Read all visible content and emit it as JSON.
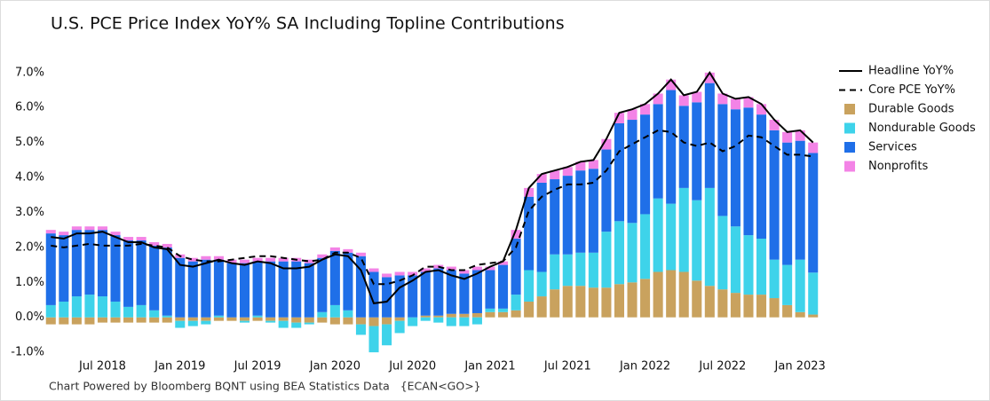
{
  "chart_data": {
    "type": "bar",
    "title": "U.S. PCE Price Index YoY% SA Including Topline Contributions",
    "source": "Chart Powered by Bloomberg BQNT using BEA Statistics Data   {ECAN<GO>}",
    "categories": [
      null,
      null,
      null,
      null,
      "Jul 2018",
      null,
      null,
      null,
      null,
      null,
      "Jan 2019",
      null,
      null,
      null,
      null,
      null,
      "Jul 2019",
      null,
      null,
      null,
      null,
      null,
      "Jan 2020",
      null,
      null,
      null,
      null,
      null,
      "Jul 2020",
      null,
      null,
      null,
      null,
      null,
      "Jan 2021",
      null,
      null,
      null,
      null,
      null,
      "Jul 2021",
      null,
      null,
      null,
      null,
      null,
      "Jan 2022",
      null,
      null,
      null,
      null,
      null,
      "Jul 2022",
      null,
      null,
      null,
      null,
      null,
      "Jan 2023",
      null
    ],
    "ylim": [
      -1.2,
      7.3
    ],
    "yticks": [
      {
        "value": -1,
        "label": "-1.0%"
      },
      {
        "value": 0,
        "label": "0.0%"
      },
      {
        "value": 1,
        "label": "1.0%"
      },
      {
        "value": 2,
        "label": "2.0%"
      },
      {
        "value": 3,
        "label": "3.0%"
      },
      {
        "value": 4,
        "label": "4.0%"
      },
      {
        "value": 5,
        "label": "5.0%"
      },
      {
        "value": 6,
        "label": "6.0%"
      },
      {
        "value": 7,
        "label": "7.0%"
      }
    ],
    "grid": false,
    "legend": "right",
    "series": [
      {
        "name": "Headline YoY%",
        "type": "line",
        "dash": false,
        "color": "#000000",
        "values": [
          2.3,
          2.25,
          2.4,
          2.4,
          2.45,
          2.3,
          2.15,
          2.15,
          2.0,
          1.95,
          1.5,
          1.45,
          1.55,
          1.65,
          1.55,
          1.5,
          1.6,
          1.55,
          1.4,
          1.4,
          1.45,
          1.65,
          1.8,
          1.75,
          1.35,
          0.4,
          0.45,
          0.85,
          1.05,
          1.3,
          1.35,
          1.2,
          1.1,
          1.25,
          1.45,
          1.6,
          2.5,
          3.7,
          4.1,
          4.2,
          4.3,
          4.45,
          4.5,
          5.1,
          5.85,
          5.95,
          6.1,
          6.4,
          6.8,
          6.35,
          6.45,
          7.0,
          6.4,
          6.25,
          6.3,
          6.1,
          5.65,
          5.3,
          5.35,
          5.0
        ]
      },
      {
        "name": "Core PCE YoY%",
        "type": "line",
        "dash": true,
        "color": "#000000",
        "values": [
          2.05,
          2.0,
          2.05,
          2.1,
          2.05,
          2.05,
          2.05,
          2.1,
          2.05,
          2.0,
          1.75,
          1.65,
          1.6,
          1.6,
          1.65,
          1.7,
          1.75,
          1.75,
          1.7,
          1.65,
          1.6,
          1.65,
          1.85,
          1.85,
          1.7,
          0.95,
          0.95,
          1.05,
          1.2,
          1.45,
          1.45,
          1.35,
          1.35,
          1.5,
          1.55,
          1.6,
          2.0,
          3.05,
          3.45,
          3.65,
          3.8,
          3.8,
          3.85,
          4.2,
          4.75,
          4.95,
          5.15,
          5.35,
          5.3,
          5.0,
          4.9,
          5.0,
          4.75,
          4.9,
          5.2,
          5.15,
          4.9,
          4.65,
          4.65,
          4.6
        ]
      },
      {
        "name": "Durable Goods",
        "type": "bar",
        "color": "#c9a25e",
        "values": [
          -0.2,
          -0.2,
          -0.2,
          -0.2,
          -0.15,
          -0.15,
          -0.15,
          -0.15,
          -0.15,
          -0.15,
          -0.1,
          -0.1,
          -0.1,
          -0.1,
          -0.1,
          -0.1,
          -0.1,
          -0.1,
          -0.1,
          -0.15,
          -0.15,
          -0.15,
          -0.2,
          -0.2,
          -0.2,
          -0.25,
          -0.2,
          -0.1,
          0.0,
          0.05,
          0.05,
          0.1,
          0.1,
          0.12,
          0.15,
          0.15,
          0.2,
          0.45,
          0.6,
          0.8,
          0.9,
          0.9,
          0.85,
          0.85,
          0.95,
          1.0,
          1.1,
          1.3,
          1.35,
          1.3,
          1.05,
          0.9,
          0.8,
          0.7,
          0.65,
          0.65,
          0.55,
          0.35,
          0.15,
          0.08
        ]
      },
      {
        "name": "Nondurable Goods",
        "type": "bar",
        "color": "#3ed3ea",
        "values": [
          0.35,
          0.45,
          0.6,
          0.65,
          0.6,
          0.45,
          0.3,
          0.35,
          0.2,
          0.05,
          -0.2,
          -0.15,
          -0.1,
          0.05,
          0.0,
          -0.05,
          0.05,
          -0.05,
          -0.2,
          -0.15,
          -0.05,
          0.15,
          0.35,
          0.2,
          -0.3,
          -0.75,
          -0.6,
          -0.35,
          -0.25,
          -0.1,
          -0.15,
          -0.25,
          -0.25,
          -0.2,
          0.1,
          0.1,
          0.45,
          0.9,
          0.7,
          1.0,
          0.9,
          0.95,
          1.0,
          1.6,
          1.8,
          1.7,
          1.85,
          2.1,
          1.9,
          2.4,
          2.3,
          2.8,
          2.1,
          1.9,
          1.7,
          1.6,
          1.1,
          1.15,
          1.5,
          1.2
        ]
      },
      {
        "name": "Services",
        "type": "bar",
        "color": "#1f6fe8",
        "values": [
          2.05,
          1.9,
          1.9,
          1.85,
          1.9,
          1.9,
          1.9,
          1.85,
          1.85,
          1.95,
          1.7,
          1.6,
          1.65,
          1.6,
          1.55,
          1.55,
          1.55,
          1.6,
          1.6,
          1.6,
          1.55,
          1.55,
          1.55,
          1.65,
          1.75,
          1.3,
          1.15,
          1.2,
          1.2,
          1.25,
          1.35,
          1.25,
          1.15,
          1.23,
          1.1,
          1.25,
          1.6,
          2.1,
          2.55,
          2.15,
          2.25,
          2.35,
          2.4,
          2.35,
          2.8,
          2.95,
          2.85,
          2.7,
          3.25,
          2.35,
          2.8,
          3.0,
          3.2,
          3.35,
          3.65,
          3.55,
          3.7,
          3.5,
          3.4,
          3.42
        ]
      },
      {
        "name": "Nonprofits",
        "type": "bar",
        "color": "#f383e6",
        "values": [
          0.1,
          0.1,
          0.1,
          0.1,
          0.1,
          0.1,
          0.1,
          0.1,
          0.1,
          0.1,
          0.1,
          0.1,
          0.1,
          0.1,
          0.1,
          0.1,
          0.1,
          0.1,
          0.1,
          0.1,
          0.1,
          0.1,
          0.1,
          0.1,
          0.1,
          0.1,
          0.1,
          0.1,
          0.1,
          0.1,
          0.1,
          0.1,
          0.1,
          0.1,
          0.1,
          0.1,
          0.25,
          0.25,
          0.25,
          0.25,
          0.25,
          0.25,
          0.25,
          0.3,
          0.3,
          0.3,
          0.3,
          0.3,
          0.3,
          0.3,
          0.3,
          0.3,
          0.3,
          0.3,
          0.3,
          0.3,
          0.3,
          0.3,
          0.3,
          0.3
        ]
      }
    ]
  }
}
